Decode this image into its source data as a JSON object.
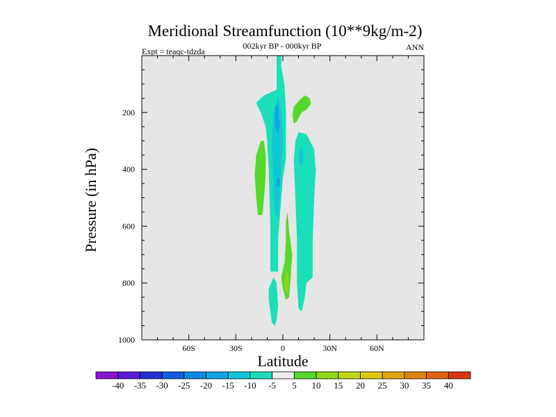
{
  "chart_data": {
    "type": "contour",
    "title": "Meridional Streamfunction (10**9kg/m-2)",
    "subtitle": "002kyr BP - 000kyr BP",
    "left_label": "Expt = teaqc-tdzda",
    "right_label": "ANN",
    "xlabel": "Latitude",
    "ylabel": "Pressure (in hPa)",
    "xlim": [
      -90,
      90
    ],
    "ylim": [
      1000,
      0
    ],
    "x_ticks": [
      {
        "value": -60,
        "label": "60S"
      },
      {
        "value": -30,
        "label": "30S"
      },
      {
        "value": 0,
        "label": "0"
      },
      {
        "value": 30,
        "label": "30N"
      },
      {
        "value": 60,
        "label": "60N"
      }
    ],
    "y_ticks": [
      {
        "value": 200,
        "label": "200"
      },
      {
        "value": 400,
        "label": "400"
      },
      {
        "value": 600,
        "label": "600"
      },
      {
        "value": 800,
        "label": "800"
      },
      {
        "value": 1000,
        "label": "1000"
      }
    ],
    "colorbar": {
      "levels": [
        -40,
        -35,
        -30,
        -25,
        -20,
        -15,
        -10,
        -5,
        5,
        10,
        15,
        20,
        25,
        30,
        35,
        40
      ],
      "colors": [
        "#8a13d6",
        "#5a1ad6",
        "#2430d4",
        "#0f5ee0",
        "#0989e6",
        "#0fa6e3",
        "#11c6d9",
        "#1adfb8",
        "#eeeeee",
        "#55d92a",
        "#8fd817",
        "#c2d80f",
        "#dcc80d",
        "#e0a60d",
        "#e0850e",
        "#e0640f",
        "#d9380f"
      ]
    },
    "regions": [
      {
        "name": "tropical-cell",
        "level": -10,
        "color": "#1adfb8",
        "polygon": [
          [
            -4,
            0
          ],
          [
            -1,
            0
          ],
          [
            -1,
            40
          ],
          [
            1,
            100
          ],
          [
            2,
            200
          ],
          [
            2,
            360
          ],
          [
            0,
            430
          ],
          [
            -2,
            570
          ],
          [
            -3,
            640
          ],
          [
            -3,
            760
          ],
          [
            -8,
            760
          ],
          [
            -8,
            600
          ],
          [
            -9,
            400
          ],
          [
            -10,
            300
          ],
          [
            -11,
            250
          ],
          [
            -14,
            200
          ],
          [
            -16,
            180
          ],
          [
            -17,
            165
          ],
          [
            -12,
            140
          ],
          [
            -4,
            120
          ]
        ]
      },
      {
        "name": "tropical-core",
        "level": -15,
        "color": "#11c6d9",
        "polygon": [
          [
            -3,
            140
          ],
          [
            -1,
            200
          ],
          [
            0,
            300
          ],
          [
            -1,
            400
          ],
          [
            -2,
            500
          ],
          [
            -3,
            570
          ],
          [
            -5,
            560
          ],
          [
            -6,
            450
          ],
          [
            -7,
            300
          ],
          [
            -6,
            200
          ]
        ]
      },
      {
        "name": "tropical-deep-core",
        "level": -20,
        "color": "#0fa6e3",
        "polygon": [
          [
            -3,
            170
          ],
          [
            -2,
            250
          ],
          [
            -3,
            280
          ],
          [
            -5,
            250
          ],
          [
            -5,
            180
          ]
        ]
      },
      {
        "name": "tropical-spot",
        "level": -20,
        "color": "#0fa6e3",
        "polygon": [
          [
            -2,
            430
          ],
          [
            -2,
            460
          ],
          [
            -4,
            460
          ],
          [
            -4,
            430
          ]
        ]
      },
      {
        "name": "lower-cell",
        "level": -10,
        "color": "#1adfb8",
        "polygon": [
          [
            -6,
            780
          ],
          [
            -4,
            800
          ],
          [
            -3,
            880
          ],
          [
            -4,
            930
          ],
          [
            -5,
            950
          ],
          [
            -7,
            940
          ],
          [
            -8,
            900
          ],
          [
            -9,
            860
          ],
          [
            -9,
            820
          ]
        ]
      },
      {
        "name": "nh-cell",
        "level": -10,
        "color": "#1adfb8",
        "polygon": [
          [
            10,
            270
          ],
          [
            15,
            275
          ],
          [
            20,
            330
          ],
          [
            21,
            400
          ],
          [
            20,
            500
          ],
          [
            19,
            650
          ],
          [
            19,
            780
          ],
          [
            15,
            800
          ],
          [
            14,
            850
          ],
          [
            12,
            900
          ],
          [
            10,
            890
          ],
          [
            9,
            800
          ],
          [
            9,
            650
          ],
          [
            8,
            500
          ],
          [
            7,
            370
          ],
          [
            8,
            300
          ]
        ]
      },
      {
        "name": "nh-core",
        "level": -15,
        "color": "#11c6d9",
        "polygon": [
          [
            11,
            320
          ],
          [
            13,
            340
          ],
          [
            13,
            380
          ],
          [
            11,
            390
          ],
          [
            10,
            360
          ]
        ]
      },
      {
        "name": "nh-upper-positive",
        "level": 5,
        "color": "#55d92a",
        "polygon": [
          [
            10,
            160
          ],
          [
            14,
            140
          ],
          [
            17,
            150
          ],
          [
            18,
            170
          ],
          [
            15,
            190
          ],
          [
            12,
            200
          ],
          [
            9,
            230
          ],
          [
            7,
            240
          ],
          [
            6,
            210
          ],
          [
            7,
            180
          ]
        ]
      },
      {
        "name": "sh-positive",
        "level": 5,
        "color": "#55d92a",
        "polygon": [
          [
            -14,
            300
          ],
          [
            -12,
            300
          ],
          [
            -11,
            350
          ],
          [
            -11,
            420
          ],
          [
            -12,
            500
          ],
          [
            -13,
            560
          ],
          [
            -16,
            560
          ],
          [
            -17,
            500
          ],
          [
            -18,
            420
          ],
          [
            -17,
            350
          ]
        ]
      },
      {
        "name": "lower-positive",
        "level": 5,
        "color": "#55d92a",
        "polygon": [
          [
            3,
            550
          ],
          [
            4,
            620
          ],
          [
            6,
            700
          ],
          [
            5,
            780
          ],
          [
            4,
            850
          ],
          [
            2,
            860
          ],
          [
            0,
            820
          ],
          [
            -1,
            780
          ],
          [
            1,
            730
          ],
          [
            2,
            650
          ],
          [
            2,
            580
          ]
        ]
      },
      {
        "name": "lower-positive-core",
        "level": 10,
        "color": "#8fd817",
        "polygon": [
          [
            3,
            760
          ],
          [
            4,
            800
          ],
          [
            3,
            840
          ],
          [
            1,
            820
          ],
          [
            1,
            780
          ]
        ]
      }
    ]
  }
}
